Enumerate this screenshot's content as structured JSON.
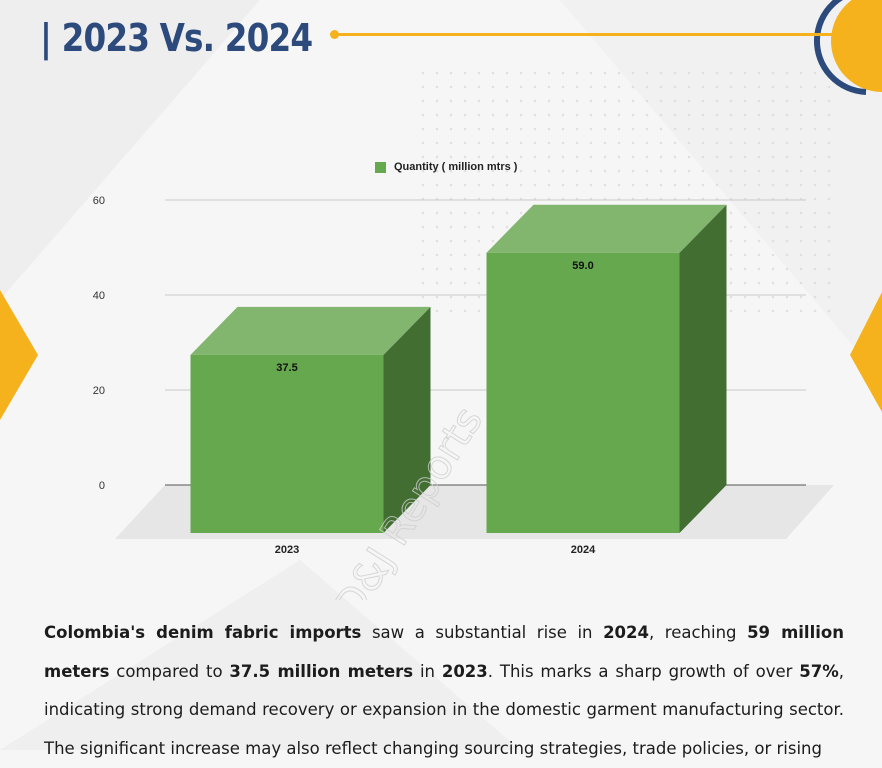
{
  "header": {
    "title": "| 2023 Vs. 2024"
  },
  "watermark": "D&J Reports",
  "colors": {
    "title": "#2c4a7c",
    "accent": "#f5b21d",
    "bar_front": "#66a84e",
    "bar_top": "#82b56d",
    "bar_side": "#426e32",
    "floor": "#e6e6e6",
    "grid": "#c9c9c9"
  },
  "chart_data": {
    "type": "bar",
    "categories": [
      "2023",
      "2024"
    ],
    "series": [
      {
        "name": "Quantity ( million mtrs )",
        "values": [
          37.5,
          59.0
        ]
      }
    ],
    "data_labels": [
      "37.5",
      "59.0"
    ],
    "yticks": [
      0,
      20,
      40,
      60
    ],
    "ylim": [
      0,
      60
    ],
    "grid": true,
    "legend_position": "top",
    "three_d": true
  },
  "description": {
    "parts": [
      {
        "text": "Colombia's denim fabric imports",
        "bold": true
      },
      {
        "text": " saw a substantial rise in ",
        "bold": false
      },
      {
        "text": "2024",
        "bold": true
      },
      {
        "text": ", reaching ",
        "bold": false
      },
      {
        "text": "59 million meters",
        "bold": true
      },
      {
        "text": " compared to ",
        "bold": false
      },
      {
        "text": "37.5 million meters",
        "bold": true
      },
      {
        "text": " in ",
        "bold": false
      },
      {
        "text": "2023",
        "bold": true
      },
      {
        "text": ". This marks a sharp growth of over ",
        "bold": false
      },
      {
        "text": "57%",
        "bold": true
      },
      {
        "text": ", indicating strong demand recovery or expansion in the domestic garment manufacturing sector. The significant increase may also reflect changing sourcing strategies, trade policies, or rising",
        "bold": false
      }
    ]
  }
}
